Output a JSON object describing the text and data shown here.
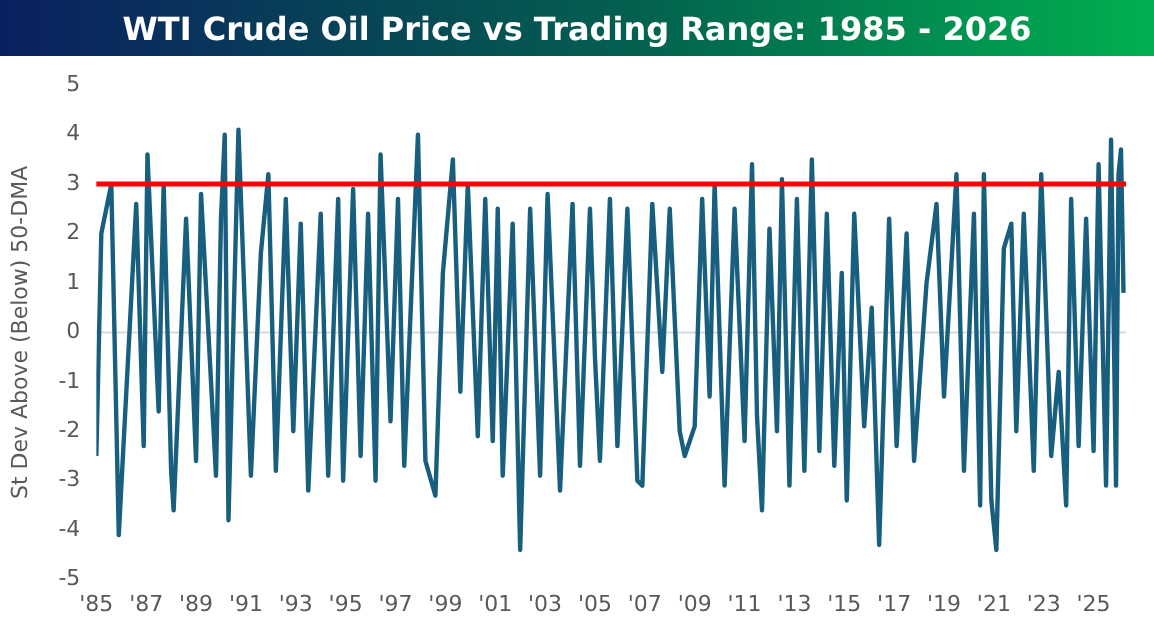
{
  "chart_data": {
    "type": "line",
    "title": "WTI Crude Oil Price vs Trading Range: 1985 - 2026",
    "ylabel": "St Dev Above (Below) 50-DMA",
    "x": [
      1985.0,
      1985.2,
      1985.6,
      1985.9,
      1986.6,
      1986.9,
      1987.05,
      1987.5,
      1987.7,
      1988.0,
      1988.1,
      1988.6,
      1989.0,
      1989.2,
      1989.8,
      1990.0,
      1990.15,
      1990.3,
      1990.7,
      1991.2,
      1991.6,
      1991.9,
      1992.2,
      1992.6,
      1992.9,
      1993.2,
      1993.5,
      1994.0,
      1994.3,
      1994.7,
      1994.9,
      1995.3,
      1995.6,
      1995.9,
      1996.2,
      1996.4,
      1996.8,
      1997.1,
      1997.35,
      1997.9,
      1998.2,
      1998.6,
      1998.9,
      1999.3,
      1999.6,
      1999.9,
      2000.3,
      2000.6,
      2000.9,
      2001.1,
      2001.3,
      2001.7,
      2002.0,
      2002.4,
      2002.8,
      2003.1,
      2003.6,
      2004.1,
      2004.4,
      2004.8,
      2005.0,
      2005.2,
      2005.6,
      2005.9,
      2006.3,
      2006.7,
      2006.9,
      2007.3,
      2007.7,
      2008.0,
      2008.4,
      2008.6,
      2009.0,
      2009.3,
      2009.6,
      2009.8,
      2010.2,
      2010.6,
      2011.0,
      2011.3,
      2011.5,
      2011.7,
      2012.0,
      2012.3,
      2012.5,
      2012.8,
      2013.1,
      2013.4,
      2013.7,
      2014.0,
      2014.3,
      2014.6,
      2014.9,
      2015.1,
      2015.4,
      2015.8,
      2016.1,
      2016.4,
      2016.8,
      2017.1,
      2017.5,
      2017.8,
      2018.3,
      2018.7,
      2019.0,
      2019.5,
      2019.8,
      2020.2,
      2020.45,
      2020.6,
      2020.9,
      2021.1,
      2021.4,
      2021.7,
      2021.9,
      2022.2,
      2022.6,
      2022.9,
      2023.3,
      2023.6,
      2023.9,
      2024.1,
      2024.4,
      2024.7,
      2025.0,
      2025.2,
      2025.5,
      2025.7,
      2025.9,
      2026.0,
      2026.1,
      2026.2
    ],
    "values": [
      -2.5,
      2.0,
      3.0,
      -4.1,
      2.6,
      -2.3,
      3.6,
      -1.6,
      3.0,
      -2.8,
      -3.6,
      2.3,
      -2.6,
      2.8,
      -2.9,
      2.3,
      4.0,
      -3.8,
      4.1,
      -2.9,
      1.6,
      3.2,
      -2.8,
      2.7,
      -2.0,
      2.2,
      -3.2,
      2.4,
      -2.9,
      2.7,
      -3.0,
      2.9,
      -2.5,
      2.4,
      -3.0,
      3.6,
      -1.8,
      2.7,
      -2.7,
      4.0,
      -2.6,
      -3.3,
      1.2,
      3.5,
      -1.2,
      3.0,
      -2.1,
      2.7,
      -2.2,
      2.5,
      -2.9,
      2.2,
      -4.4,
      2.5,
      -2.9,
      2.8,
      -3.2,
      2.6,
      -2.7,
      2.5,
      -0.5,
      -2.6,
      2.7,
      -2.3,
      2.5,
      -3.0,
      -3.1,
      2.6,
      -0.8,
      2.5,
      -2.0,
      -2.5,
      -1.9,
      2.7,
      -1.3,
      3.0,
      -3.1,
      2.5,
      -2.2,
      3.4,
      -1.7,
      -3.6,
      2.1,
      -2.0,
      3.1,
      -3.1,
      2.7,
      -2.8,
      3.5,
      -2.4,
      2.4,
      -2.7,
      1.2,
      -3.4,
      2.4,
      -1.9,
      0.5,
      -4.3,
      2.3,
      -2.3,
      2.0,
      -2.6,
      1.0,
      2.6,
      -1.3,
      3.2,
      -2.8,
      2.4,
      -3.5,
      3.2,
      -3.4,
      -4.4,
      1.7,
      2.2,
      -2.0,
      2.4,
      -2.8,
      3.2,
      -2.5,
      -0.8,
      -3.5,
      2.7,
      -2.3,
      2.3,
      -2.4,
      3.4,
      -3.1,
      3.9,
      -3.1,
      3.2,
      3.7,
      0.8
    ],
    "color": "#185f7f",
    "line_style": "solid",
    "marker": "none",
    "grid": false,
    "legend": false,
    "xlim": [
      1985,
      2026.3
    ],
    "xticks": [
      {
        "value": 1985,
        "label": "'85"
      },
      {
        "value": 1987,
        "label": "'87"
      },
      {
        "value": 1989,
        "label": "'89"
      },
      {
        "value": 1991,
        "label": "'91"
      },
      {
        "value": 1993,
        "label": "'93"
      },
      {
        "value": 1995,
        "label": "'95"
      },
      {
        "value": 1997,
        "label": "'97"
      },
      {
        "value": 1999,
        "label": "'99"
      },
      {
        "value": 2001,
        "label": "'01"
      },
      {
        "value": 2003,
        "label": "'03"
      },
      {
        "value": 2005,
        "label": "'05"
      },
      {
        "value": 2007,
        "label": "'07"
      },
      {
        "value": 2009,
        "label": "'09"
      },
      {
        "value": 2011,
        "label": "'11"
      },
      {
        "value": 2013,
        "label": "'13"
      },
      {
        "value": 2015,
        "label": "'15"
      },
      {
        "value": 2017,
        "label": "'17"
      },
      {
        "value": 2019,
        "label": "'19"
      },
      {
        "value": 2021,
        "label": "'21"
      },
      {
        "value": 2023,
        "label": "'23"
      },
      {
        "value": 2025,
        "label": "'25"
      }
    ],
    "ylim": [
      -5,
      5
    ],
    "yticks": [
      -5,
      -4,
      -3,
      -2,
      -1,
      0,
      1,
      2,
      3,
      4,
      5
    ],
    "ref_lines": [
      {
        "axis": "y",
        "value": 3,
        "color": "#ff0000"
      },
      {
        "axis": "y",
        "value": 0,
        "color": "#d9d9d9"
      }
    ]
  }
}
